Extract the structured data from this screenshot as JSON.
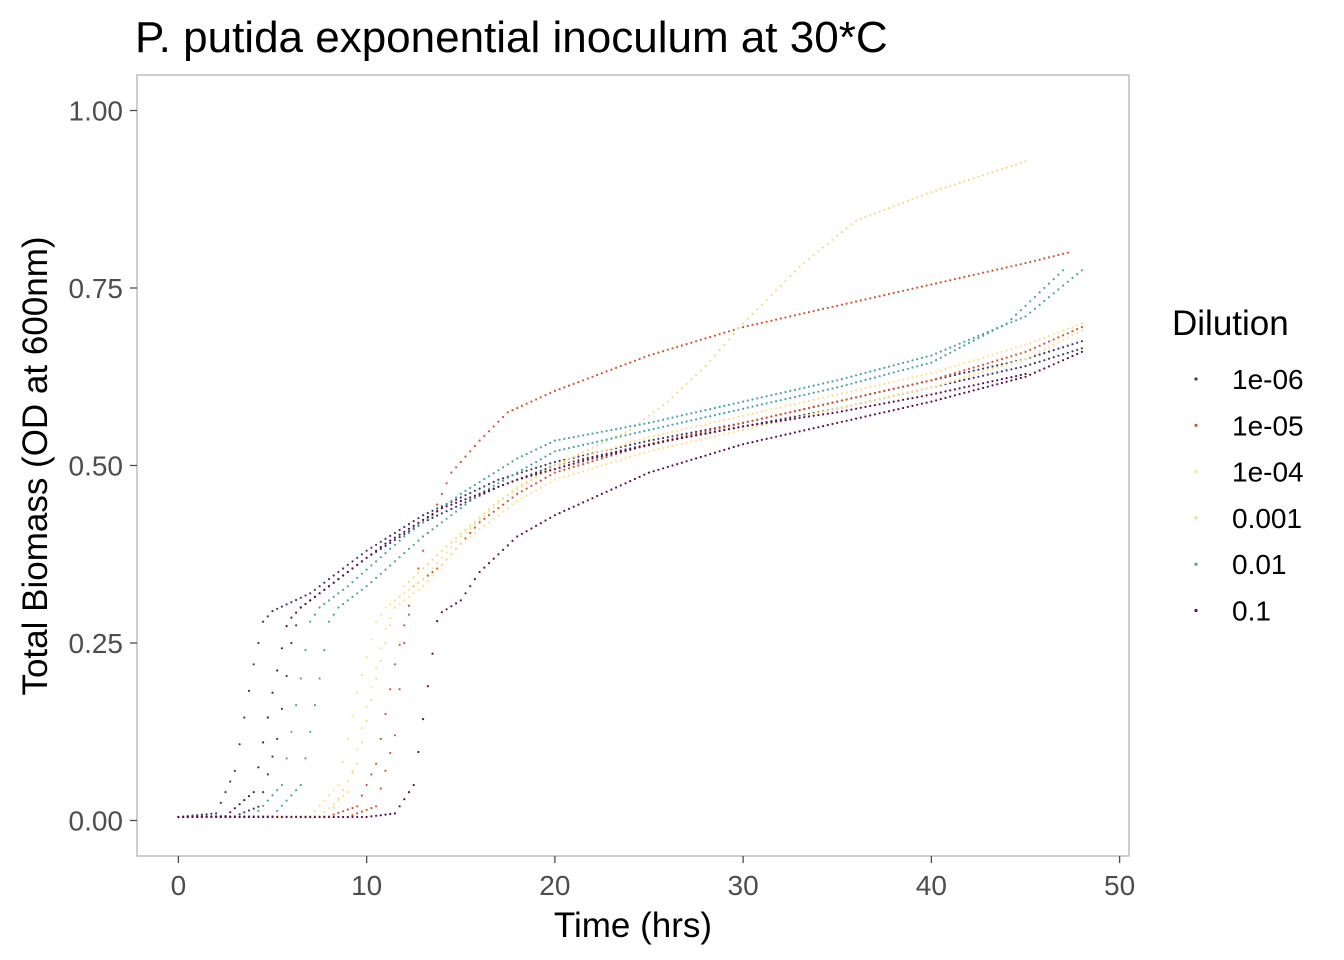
{
  "chart_data": {
    "type": "scatter",
    "title": "P. putida exponential inoculum at 30*C",
    "xlabel": "Time (hrs)",
    "ylabel": "Total Biomass (OD at 600nm)",
    "xlim": [
      -2.2,
      50.5
    ],
    "ylim": [
      -0.05,
      1.05
    ],
    "x_ticks": [
      0,
      10,
      20,
      30,
      40,
      50
    ],
    "x_tick_labels": [
      "0",
      "10",
      "20",
      "30",
      "40",
      "50"
    ],
    "y_ticks": [
      0.0,
      0.25,
      0.5,
      0.75,
      1.0
    ],
    "y_tick_labels": [
      "0.00",
      "0.25",
      "0.50",
      "0.75",
      "1.00"
    ],
    "grid": false,
    "legend": {
      "title": "Dilution",
      "position": "right",
      "entries": [
        {
          "label": "1e-06",
          "color": "#3b3b6e"
        },
        {
          "label": "1e-05",
          "color": "#d9542e"
        },
        {
          "label": "1e-04",
          "color": "#fde38a"
        },
        {
          "label": "0.001",
          "color": "#f6d98a"
        },
        {
          "label": "0.01",
          "color": "#48a6a0"
        },
        {
          "label": "0.1",
          "color": "#5e0f4e"
        }
      ]
    },
    "series": [
      {
        "name": "1e-06",
        "color": "#3b3b6e",
        "x": [
          0,
          2,
          3,
          4,
          4.5,
          5,
          7,
          10,
          13,
          17,
          20,
          25,
          30,
          35,
          40,
          45,
          48
        ],
        "y": [
          0.005,
          0.01,
          0.07,
          0.22,
          0.28,
          0.295,
          0.32,
          0.38,
          0.43,
          0.48,
          0.505,
          0.535,
          0.56,
          0.59,
          0.62,
          0.65,
          0.675
        ]
      },
      {
        "name": "1e-06",
        "color": "#3b3b6e",
        "x": [
          0,
          3,
          4.3,
          5.3,
          6,
          6.5,
          8,
          10,
          13,
          17,
          20,
          25,
          30,
          35,
          40,
          45,
          48
        ],
        "y": [
          0.005,
          0.006,
          0.02,
          0.12,
          0.25,
          0.3,
          0.33,
          0.37,
          0.42,
          0.47,
          0.5,
          0.53,
          0.555,
          0.58,
          0.61,
          0.64,
          0.665
        ]
      },
      {
        "name": "1e-05",
        "color": "#d9542e",
        "x": [
          0,
          8,
          9.5,
          10.5,
          11.5,
          12.5,
          13.5,
          14.5,
          16,
          17.5,
          20,
          25,
          30,
          35,
          40,
          45,
          47.3
        ],
        "y": [
          0.005,
          0.006,
          0.02,
          0.08,
          0.22,
          0.33,
          0.43,
          0.49,
          0.535,
          0.575,
          0.605,
          0.655,
          0.695,
          0.725,
          0.755,
          0.785,
          0.8
        ]
      },
      {
        "name": "1e-05",
        "color": "#d9542e",
        "x": [
          0,
          9,
          10.5,
          11.5,
          12,
          12.5,
          14,
          16,
          18,
          20,
          25,
          30,
          35,
          40,
          45,
          48
        ],
        "y": [
          0.005,
          0.005,
          0.02,
          0.12,
          0.25,
          0.33,
          0.36,
          0.42,
          0.46,
          0.49,
          0.53,
          0.56,
          0.59,
          0.62,
          0.66,
          0.695
        ]
      },
      {
        "name": "1e-04",
        "color": "#fde38a",
        "x": [
          0,
          7,
          8.5,
          9.5,
          10.5,
          11,
          13,
          15,
          18,
          20,
          25,
          30,
          35,
          40,
          45,
          48
        ],
        "y": [
          0.005,
          0.006,
          0.05,
          0.18,
          0.28,
          0.3,
          0.34,
          0.4,
          0.47,
          0.5,
          0.54,
          0.57,
          0.6,
          0.63,
          0.67,
          0.7
        ]
      },
      {
        "name": "1e-04",
        "color": "#fde38a",
        "x": [
          0,
          7.5,
          9,
          10,
          11,
          11.5,
          13,
          15,
          18,
          20,
          25,
          30,
          35,
          40,
          45,
          48
        ],
        "y": [
          0.005,
          0.006,
          0.04,
          0.16,
          0.27,
          0.3,
          0.33,
          0.39,
          0.45,
          0.48,
          0.52,
          0.55,
          0.58,
          0.61,
          0.65,
          0.69
        ]
      },
      {
        "name": "0.001",
        "color": "#f6d98a",
        "x": [
          0,
          8,
          9.5,
          10.5,
          11.5,
          12,
          14,
          17,
          20,
          24,
          26,
          28,
          30,
          33,
          36,
          40,
          45.2
        ],
        "y": [
          0.005,
          0.006,
          0.08,
          0.2,
          0.3,
          0.33,
          0.38,
          0.45,
          0.5,
          0.55,
          0.59,
          0.64,
          0.7,
          0.78,
          0.845,
          0.885,
          0.93
        ]
      },
      {
        "name": "0.01",
        "color": "#48a6a0",
        "x": [
          0,
          4,
          5.5,
          6.5,
          7,
          7.5,
          9,
          12,
          15,
          18,
          20,
          25,
          30,
          35,
          40,
          45,
          48
        ],
        "y": [
          0.005,
          0.006,
          0.05,
          0.2,
          0.28,
          0.3,
          0.33,
          0.4,
          0.46,
          0.51,
          0.535,
          0.56,
          0.59,
          0.62,
          0.655,
          0.71,
          0.775
        ]
      },
      {
        "name": "0.01",
        "color": "#48a6a0",
        "x": [
          0,
          5,
          6.5,
          7.5,
          8,
          8.5,
          10,
          13,
          16,
          20,
          25,
          30,
          35,
          40,
          44,
          47.2
        ],
        "y": [
          0.005,
          0.006,
          0.05,
          0.2,
          0.28,
          0.3,
          0.33,
          0.4,
          0.46,
          0.52,
          0.55,
          0.58,
          0.61,
          0.645,
          0.7,
          0.78
        ]
      },
      {
        "name": "0.1",
        "color": "#5e0f4e",
        "x": [
          0,
          10,
          11.5,
          12.5,
          13.2,
          13.8,
          15,
          16,
          18,
          20,
          25,
          30,
          35,
          40,
          45,
          48
        ],
        "y": [
          0.005,
          0.005,
          0.01,
          0.05,
          0.18,
          0.29,
          0.31,
          0.35,
          0.4,
          0.43,
          0.49,
          0.53,
          0.56,
          0.59,
          0.625,
          0.66
        ]
      },
      {
        "name": "0.1",
        "color": "#5e0f4e",
        "x": [
          0,
          2.5,
          4,
          5,
          5.8,
          6.5,
          8,
          11,
          14,
          18,
          22,
          26,
          30,
          35,
          40,
          45.2
        ],
        "y": [
          0.005,
          0.006,
          0.04,
          0.18,
          0.28,
          0.3,
          0.33,
          0.39,
          0.44,
          0.48,
          0.51,
          0.535,
          0.555,
          0.575,
          0.6,
          0.63
        ]
      }
    ]
  }
}
